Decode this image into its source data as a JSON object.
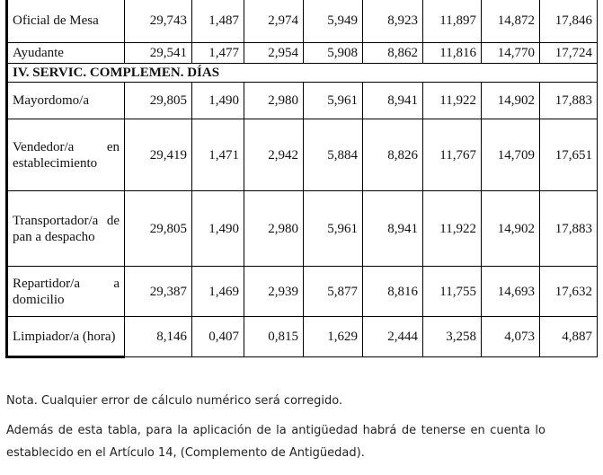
{
  "section_title": "IV. SERVIC. COMPLEMEN. DÍAS",
  "rows_before": [
    {
      "label": "Oficial de Mesa",
      "values": [
        "29,743",
        "1,487",
        "2,974",
        "5,949",
        "8,923",
        "11,897",
        "14,872",
        "17,846"
      ]
    },
    {
      "label": "Ayudante",
      "values": [
        "29,541",
        "1,477",
        "2,954",
        "5,908",
        "8,862",
        "11,816",
        "14,770",
        "17,724"
      ]
    }
  ],
  "rows_after": [
    {
      "label": "Mayordomo/a",
      "values": [
        "29,805",
        "1,490",
        "2,980",
        "5,961",
        "8,941",
        "11,922",
        "14,902",
        "17,883"
      ]
    },
    {
      "label": "Vendedor/a en establecimiento",
      "values": [
        "29,419",
        "1,471",
        "2,942",
        "5,884",
        "8,826",
        "11,767",
        "14,709",
        "17,651"
      ]
    },
    {
      "label": "Transportador/a de pan a despacho",
      "values": [
        "29,805",
        "1,490",
        "2,980",
        "5,961",
        "8,941",
        "11,922",
        "14,902",
        "17,883"
      ]
    },
    {
      "label": "Repartidor/a a domicilio",
      "values": [
        "29,387",
        "1,469",
        "2,939",
        "5,877",
        "8,816",
        "11,755",
        "14,693",
        "17,632"
      ]
    },
    {
      "label": "Limpiador/a (hora)",
      "values": [
        "8,146",
        "0,407",
        "0,815",
        "1,629",
        "2,444",
        "3,258",
        "4,073",
        "4,887"
      ]
    }
  ],
  "notes": {
    "note1": "Nota. Cualquier error de cálculo numérico será corregido.",
    "note2_line1": "Además de esta tabla, para la aplicación de la antigüedad habrá de tenerse en cuenta lo",
    "note2_line2": "establecido en el Artículo 14, (Complemento de Antigüedad)."
  }
}
